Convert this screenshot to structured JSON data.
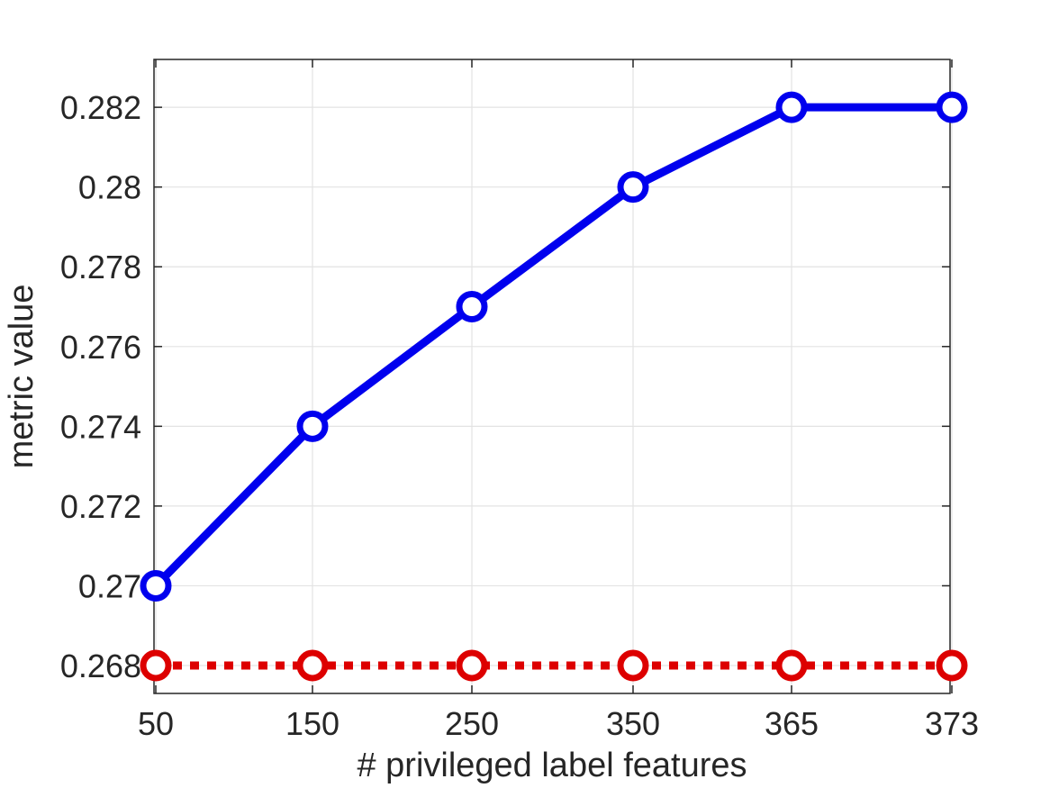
{
  "chart_data": {
    "type": "line",
    "title": "",
    "xlabel": "# privileged label features",
    "ylabel": "metric value",
    "categories": [
      "50",
      "150",
      "250",
      "350",
      "365",
      "373"
    ],
    "ylim": [
      0.2673,
      0.2832
    ],
    "yticks": [
      "0.268",
      "0.27",
      "0.272",
      "0.274",
      "0.276",
      "0.278",
      "0.28",
      "0.282"
    ],
    "ytick_values": [
      0.268,
      0.27,
      0.272,
      0.274,
      0.276,
      0.278,
      0.28,
      0.282
    ],
    "grid": true,
    "legend": null,
    "series": [
      {
        "values": [
          0.27,
          0.274,
          0.277,
          0.28,
          0.282,
          0.282
        ],
        "color": "#0000ee",
        "style": "solid",
        "marker": "circle"
      },
      {
        "values": [
          0.268,
          0.268,
          0.268,
          0.268,
          0.268,
          0.268
        ],
        "color": "#dd0000",
        "style": "dotted",
        "marker": "circle"
      }
    ]
  }
}
